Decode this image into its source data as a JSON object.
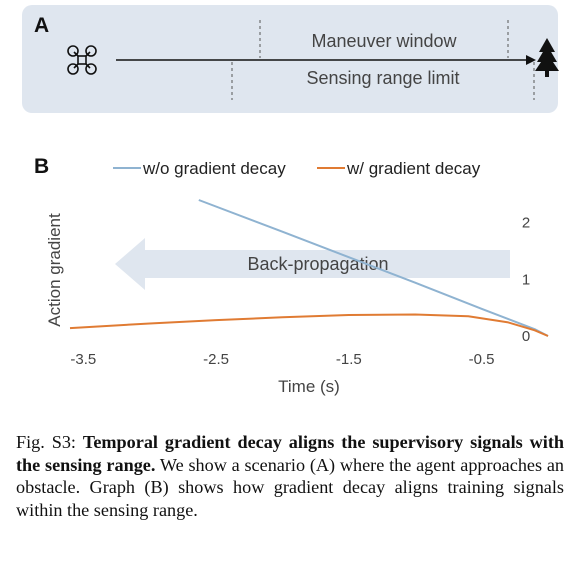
{
  "panel_a": {
    "label": "A",
    "maneuver_window_label": "Maneuver window",
    "sensing_range_label": "Sensing range limit",
    "icons": {
      "agent": "drone-icon",
      "obstacle": "tree-icon"
    }
  },
  "panel_b": {
    "label": "B",
    "arrow_label": "Back-propagation"
  },
  "chart_data": {
    "type": "line",
    "xlabel": "Time (s)",
    "ylabel": "Action gradient",
    "xlim": [
      -3.6,
      0.0
    ],
    "ylim": [
      0,
      2.4
    ],
    "x_ticks": [
      "-3.5",
      "-2.5",
      "-1.5",
      "-0.5"
    ],
    "x_tick_values": [
      -3.5,
      -2.5,
      -1.5,
      -0.5
    ],
    "y_ticks": [
      "0",
      "1",
      "2"
    ],
    "y_tick_values": [
      0,
      1,
      2
    ],
    "y_axis_side": "right",
    "grid": false,
    "legend_position": "top",
    "series": [
      {
        "name": "w/o gradient decay",
        "color": "#8fb3d1",
        "x": [
          -2.63,
          -2.0,
          -1.5,
          -1.0,
          -0.5,
          -0.1,
          0.0
        ],
        "y": [
          2.4,
          1.84,
          1.39,
          0.94,
          0.48,
          0.12,
          0.0
        ]
      },
      {
        "name": "w/ gradient decay",
        "color": "#e07b33",
        "x": [
          -3.6,
          -3.0,
          -2.5,
          -2.0,
          -1.5,
          -1.0,
          -0.6,
          -0.3,
          -0.1,
          0.0
        ],
        "y": [
          0.14,
          0.22,
          0.28,
          0.33,
          0.37,
          0.38,
          0.35,
          0.24,
          0.1,
          0.0
        ]
      }
    ]
  },
  "caption": {
    "lead": "Fig. S3: ",
    "title": "Temporal gradient decay aligns the supervisory signals with the sensing range.",
    "body": " We show a scenario (A) where the agent approaches an obstacle. Graph (B) shows how gradient decay aligns training signals within the sensing range."
  }
}
